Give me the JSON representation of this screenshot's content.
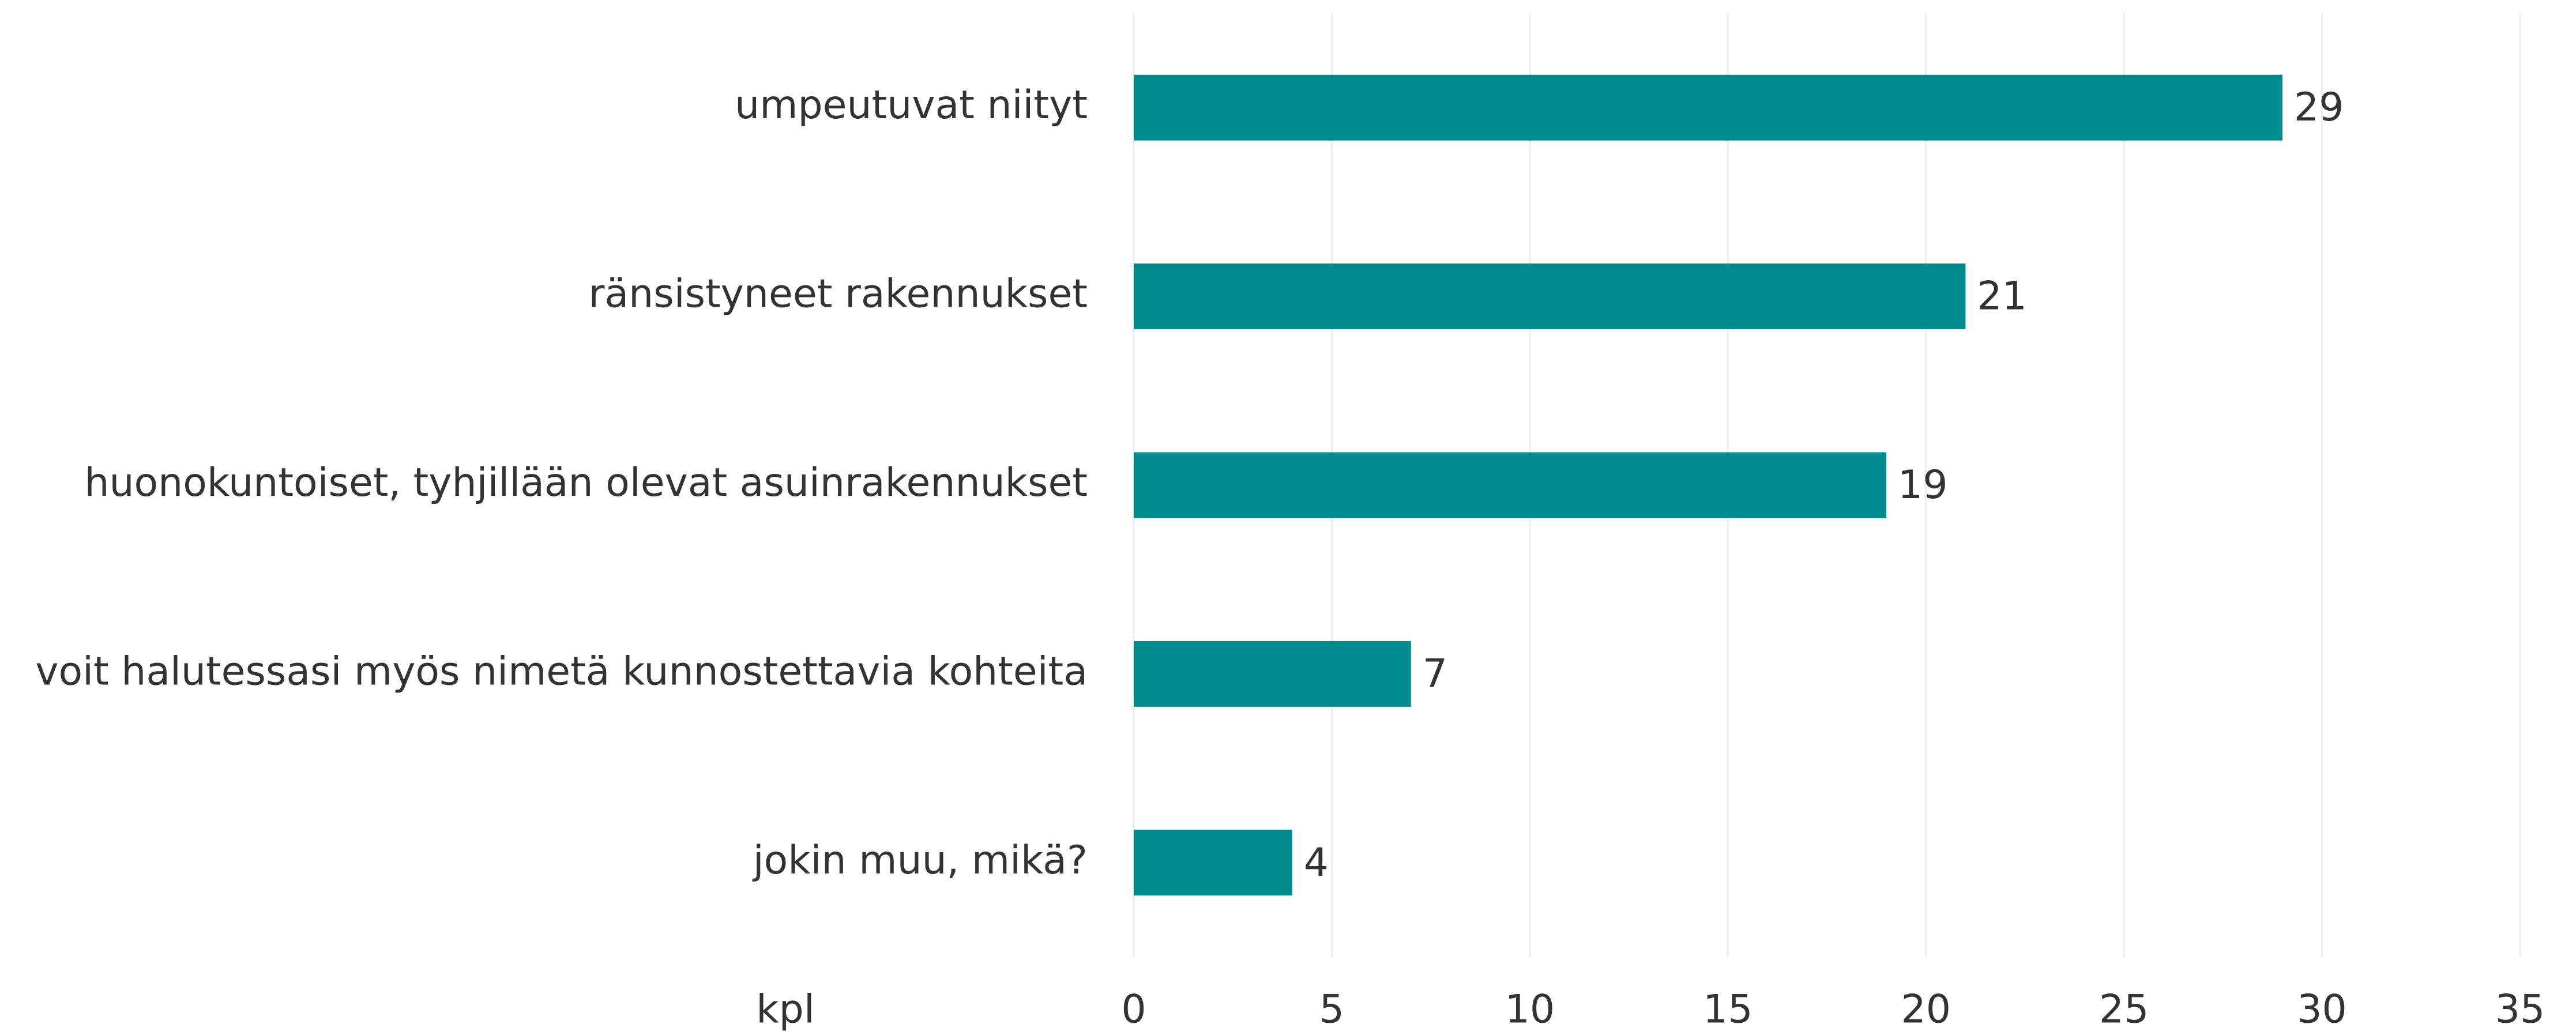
{
  "chart_data": {
    "type": "hbar",
    "categories": [
      "umpeutuvat niityt",
      "ränsistyneet rakennukset",
      "huonokuntoiset, tyhjillään olevat asuinrakennukset",
      "voit halutessasi myös nimetä kunnostettavia kohteita",
      "jokin muu, mikä?"
    ],
    "values": [
      29,
      21,
      19,
      7,
      4
    ],
    "color": "#008b8f",
    "xlabel": "kpl",
    "xlim": [
      0,
      35
    ],
    "xticks": [
      0,
      5,
      10,
      15,
      20,
      25,
      30,
      35
    ],
    "grid": true
  }
}
